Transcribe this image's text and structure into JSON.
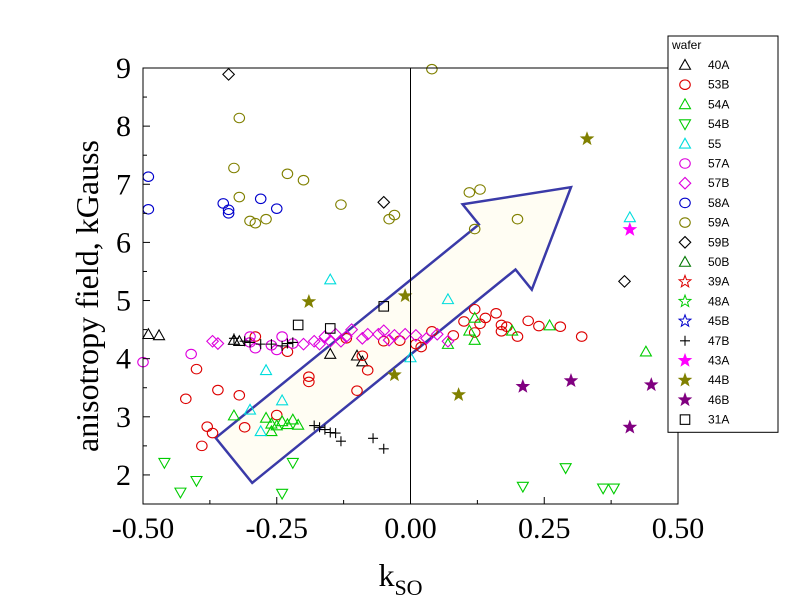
{
  "chart_data": {
    "type": "scatter",
    "xlabel_main": "k",
    "xlabel_sub": "SO",
    "ylabel": "anisotropy field, kGauss",
    "xlim": [
      -0.5,
      0.5
    ],
    "ylim": [
      1.5,
      9
    ],
    "xticks": [
      "-0.50",
      "-0.25",
      "0.00",
      "0.25",
      "0.50"
    ],
    "yticks": [
      "2",
      "3",
      "4",
      "5",
      "6",
      "7",
      "8",
      "9"
    ],
    "legend_title": "wafer",
    "annotation_arrow": {
      "from": [
        -0.33,
        2.25
      ],
      "to": [
        0.3,
        6.95
      ]
    },
    "series": [
      {
        "name": "40A",
        "marker": "triangle-up",
        "color": "#000000",
        "filled": false,
        "points": [
          [
            -0.49,
            4.42
          ],
          [
            -0.47,
            4.4
          ],
          [
            -0.33,
            4.32
          ],
          [
            -0.32,
            4.3
          ],
          [
            -0.1,
            4.05
          ],
          [
            -0.09,
            3.95
          ],
          [
            -0.15,
            4.08
          ]
        ]
      },
      {
        "name": "53B",
        "marker": "circle",
        "color": "#dd0000",
        "filled": false,
        "points": [
          [
            -0.42,
            3.31
          ],
          [
            -0.4,
            3.82
          ],
          [
            -0.38,
            2.83
          ],
          [
            -0.37,
            2.72
          ],
          [
            -0.36,
            3.46
          ],
          [
            -0.32,
            3.37
          ],
          [
            -0.31,
            2.82
          ],
          [
            -0.29,
            4.38
          ],
          [
            -0.25,
            3.03
          ],
          [
            -0.23,
            4.12
          ],
          [
            -0.19,
            3.69
          ],
          [
            -0.19,
            3.6
          ],
          [
            -0.12,
            4.35
          ],
          [
            -0.1,
            3.45
          ],
          [
            -0.09,
            4.05
          ],
          [
            -0.08,
            3.8
          ],
          [
            -0.05,
            4.3
          ],
          [
            -0.02,
            4.31
          ],
          [
            0.04,
            4.47
          ],
          [
            0.08,
            4.4
          ],
          [
            0.1,
            4.64
          ],
          [
            0.12,
            4.85
          ],
          [
            0.14,
            4.7
          ],
          [
            0.16,
            4.78
          ],
          [
            0.17,
            4.58
          ],
          [
            0.17,
            4.47
          ],
          [
            0.18,
            4.55
          ],
          [
            0.22,
            4.65
          ],
          [
            0.24,
            4.56
          ],
          [
            0.28,
            4.55
          ],
          [
            0.32,
            4.38
          ],
          [
            0.01,
            4.25
          ],
          [
            0.02,
            4.2
          ],
          [
            0.12,
            4.45
          ],
          [
            0.2,
            4.38
          ],
          [
            0.13,
            4.6
          ],
          [
            -0.39,
            2.5
          ]
        ]
      },
      {
        "name": "54A",
        "marker": "triangle-up",
        "color": "#00cc00",
        "filled": false,
        "points": [
          [
            -0.33,
            3.02
          ],
          [
            -0.27,
            2.98
          ],
          [
            -0.26,
            2.75
          ],
          [
            -0.25,
            2.85
          ],
          [
            -0.24,
            2.92
          ],
          [
            -0.23,
            2.87
          ],
          [
            -0.22,
            2.95
          ],
          [
            -0.21,
            2.86
          ],
          [
            -0.26,
            2.88
          ],
          [
            0.07,
            4.25
          ],
          [
            0.11,
            4.48
          ],
          [
            0.12,
            4.32
          ],
          [
            0.12,
            4.7
          ],
          [
            0.19,
            4.48
          ],
          [
            0.26,
            4.57
          ],
          [
            0.44,
            4.12
          ]
        ]
      },
      {
        "name": "54B",
        "marker": "triangle-down",
        "color": "#00cc00",
        "filled": false,
        "points": [
          [
            -0.46,
            2.21
          ],
          [
            -0.43,
            1.7
          ],
          [
            -0.4,
            1.9
          ],
          [
            -0.22,
            2.21
          ],
          [
            -0.24,
            1.68
          ],
          [
            0.21,
            1.8
          ],
          [
            0.29,
            2.12
          ],
          [
            0.36,
            1.77
          ],
          [
            0.38,
            1.77
          ]
        ]
      },
      {
        "name": "55",
        "marker": "triangle-up",
        "color": "#00dddd",
        "filled": false,
        "points": [
          [
            -0.28,
            2.75
          ],
          [
            -0.3,
            3.12
          ],
          [
            -0.27,
            3.8
          ],
          [
            -0.24,
            3.28
          ],
          [
            -0.15,
            5.36
          ],
          [
            0.07,
            5.02
          ],
          [
            0.41,
            6.43
          ],
          [
            0.0,
            4.02
          ]
        ]
      },
      {
        "name": "57A",
        "marker": "circle",
        "color": "#dd00dd",
        "filled": false,
        "points": [
          [
            -0.5,
            3.94
          ],
          [
            -0.41,
            4.08
          ],
          [
            -0.3,
            4.38
          ],
          [
            -0.29,
            4.18
          ],
          [
            -0.26,
            4.23
          ],
          [
            -0.25,
            4.15
          ],
          [
            -0.24,
            4.38
          ],
          [
            -0.22,
            4.26
          ],
          [
            -0.3,
            4.28
          ]
        ]
      },
      {
        "name": "57B",
        "marker": "diamond",
        "color": "#dd00dd",
        "filled": false,
        "points": [
          [
            -0.37,
            4.3
          ],
          [
            -0.36,
            4.26
          ],
          [
            -0.2,
            4.25
          ],
          [
            -0.18,
            4.3
          ],
          [
            -0.16,
            4.38
          ],
          [
            -0.15,
            4.3
          ],
          [
            -0.14,
            4.42
          ],
          [
            -0.13,
            4.3
          ],
          [
            -0.12,
            4.38
          ],
          [
            -0.11,
            4.5
          ],
          [
            -0.09,
            4.35
          ],
          [
            -0.08,
            4.42
          ],
          [
            -0.06,
            4.42
          ],
          [
            -0.05,
            4.48
          ],
          [
            -0.03,
            4.4
          ],
          [
            -0.01,
            4.42
          ],
          [
            0.01,
            4.4
          ],
          [
            0.03,
            4.35
          ],
          [
            0.05,
            4.42
          ],
          [
            0.07,
            4.3
          ],
          [
            -0.17,
            4.25
          ],
          [
            -0.04,
            4.32
          ]
        ]
      },
      {
        "name": "58A",
        "marker": "circle",
        "color": "#0000cc",
        "filled": false,
        "points": [
          [
            -0.49,
            7.13
          ],
          [
            -0.49,
            6.57
          ],
          [
            -0.35,
            6.67
          ],
          [
            -0.34,
            6.56
          ],
          [
            -0.34,
            6.5
          ],
          [
            -0.28,
            6.75
          ],
          [
            -0.25,
            6.58
          ]
        ]
      },
      {
        "name": "59A",
        "marker": "circle",
        "color": "#808000",
        "filled": false,
        "points": [
          [
            -0.32,
            8.14
          ],
          [
            -0.33,
            7.28
          ],
          [
            -0.32,
            6.78
          ],
          [
            -0.3,
            6.37
          ],
          [
            -0.29,
            6.33
          ],
          [
            -0.27,
            6.4
          ],
          [
            -0.23,
            7.18
          ],
          [
            -0.2,
            7.07
          ],
          [
            -0.13,
            6.65
          ],
          [
            -0.04,
            6.4
          ],
          [
            -0.03,
            6.47
          ],
          [
            0.04,
            8.98
          ],
          [
            0.11,
            6.86
          ],
          [
            0.13,
            6.91
          ],
          [
            0.2,
            6.4
          ],
          [
            0.12,
            6.23
          ]
        ]
      },
      {
        "name": "59B",
        "marker": "diamond",
        "color": "#000000",
        "filled": false,
        "points": [
          [
            -0.34,
            8.89
          ],
          [
            -0.05,
            6.69
          ],
          [
            0.4,
            5.33
          ]
        ]
      },
      {
        "name": "50B",
        "marker": "triangle-up",
        "color": "#007700",
        "filled": false,
        "points": []
      },
      {
        "name": "39A",
        "marker": "star",
        "color": "#dd0000",
        "filled": false,
        "points": []
      },
      {
        "name": "48A",
        "marker": "star",
        "color": "#00cc00",
        "filled": false,
        "points": []
      },
      {
        "name": "45B",
        "marker": "star",
        "color": "#0000cc",
        "filled": false,
        "points": []
      },
      {
        "name": "47B",
        "marker": "plus",
        "color": "#000000",
        "filled": false,
        "points": [
          [
            -0.33,
            4.35
          ],
          [
            -0.31,
            4.3
          ],
          [
            -0.3,
            4.28
          ],
          [
            -0.28,
            4.25
          ],
          [
            -0.26,
            4.25
          ],
          [
            -0.24,
            4.22
          ],
          [
            -0.23,
            4.26
          ],
          [
            -0.22,
            4.28
          ],
          [
            -0.18,
            2.85
          ],
          [
            -0.17,
            2.82
          ],
          [
            -0.16,
            2.78
          ],
          [
            -0.15,
            2.73
          ],
          [
            -0.13,
            2.58
          ],
          [
            -0.14,
            2.72
          ],
          [
            -0.07,
            2.63
          ],
          [
            -0.05,
            2.45
          ]
        ]
      },
      {
        "name": "43A",
        "marker": "star",
        "color": "#ff00ff",
        "filled": true,
        "points": [
          [
            0.41,
            6.22
          ]
        ]
      },
      {
        "name": "44B",
        "marker": "star",
        "color": "#808000",
        "filled": true,
        "points": [
          [
            -0.19,
            4.98
          ],
          [
            -0.01,
            5.08
          ],
          [
            -0.03,
            3.72
          ],
          [
            0.09,
            3.38
          ],
          [
            0.33,
            7.78
          ]
        ]
      },
      {
        "name": "46B",
        "marker": "star",
        "color": "#800080",
        "filled": true,
        "points": [
          [
            0.21,
            3.52
          ],
          [
            0.3,
            3.62
          ],
          [
            0.41,
            2.82
          ],
          [
            0.45,
            3.55
          ]
        ]
      },
      {
        "name": "31A",
        "marker": "square",
        "color": "#000000",
        "filled": false,
        "points": [
          [
            -0.21,
            4.58
          ],
          [
            -0.15,
            4.52
          ],
          [
            -0.05,
            4.9
          ]
        ]
      }
    ]
  }
}
